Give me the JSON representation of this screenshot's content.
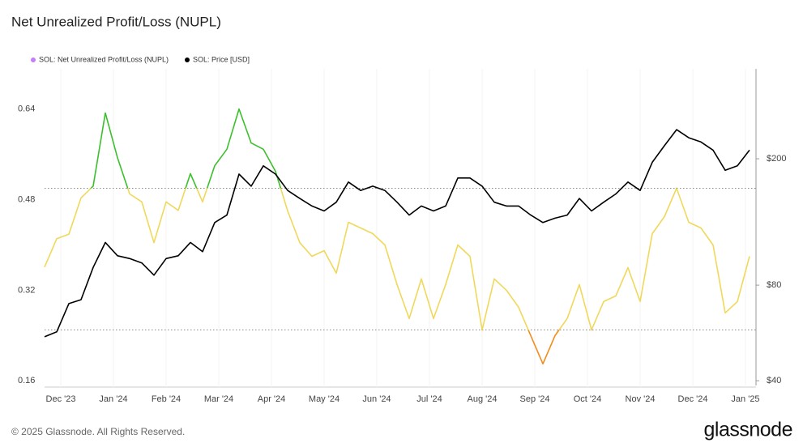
{
  "chart_data": {
    "type": "line",
    "title": "Net Unrealized Profit/Loss (NUPL)",
    "footer": "© 2025 Glassnode. All Rights Reserved.",
    "brand": "glassnode",
    "x_labels": [
      "Dec '23",
      "Jan '24",
      "Feb '24",
      "Mar '24",
      "Apr '24",
      "May '24",
      "Jun '24",
      "Jul '24",
      "Aug '24",
      "Sep '24",
      "Oct '24",
      "Nov '24",
      "Dec '24",
      "Jan '25"
    ],
    "ylim": [
      0.149,
      0.711
    ],
    "yticks": [
      0.16,
      0.32,
      0.48,
      0.64
    ],
    "y2lim": [
      38.2,
      384
    ],
    "y2scale": "log",
    "y2ticks": [
      {
        "value": 40,
        "label": "$40"
      },
      {
        "value": 80,
        "label": "$80"
      },
      {
        "value": 200,
        "label": "$200"
      }
    ],
    "threshold_lines": [
      0.25,
      0.5
    ],
    "zone_colors": [
      "#f28c1c",
      "#f0d85a",
      "#3cbf2c"
    ],
    "series": [
      {
        "name": "SOL: Net Unrealized Profit/Loss (NUPL)",
        "color": "#c77df3",
        "values": [
          0.361,
          0.411,
          0.419,
          0.483,
          0.504,
          0.633,
          0.554,
          0.49,
          0.476,
          0.404,
          0.476,
          0.461,
          0.526,
          0.476,
          0.54,
          0.569,
          0.64,
          0.58,
          0.569,
          0.53,
          0.46,
          0.404,
          0.38,
          0.39,
          0.35,
          0.44,
          0.43,
          0.42,
          0.4,
          0.33,
          0.27,
          0.34,
          0.27,
          0.33,
          0.4,
          0.38,
          0.25,
          0.34,
          0.32,
          0.29,
          0.24,
          0.19,
          0.24,
          0.27,
          0.33,
          0.25,
          0.3,
          0.31,
          0.36,
          0.3,
          0.42,
          0.45,
          0.5,
          0.44,
          0.43,
          0.4,
          0.28,
          0.3,
          0.38
        ]
      },
      {
        "name": "SOL: Price [USD]",
        "color": "#000000",
        "axis": "y2",
        "values": [
          55,
          57,
          70,
          72,
          91,
          109,
          99,
          97,
          94,
          86,
          97,
          99,
          109,
          102,
          126,
          133,
          179,
          164,
          190,
          179,
          159,
          150,
          142,
          137,
          146,
          169,
          159,
          164,
          159,
          146,
          133,
          142,
          137,
          142,
          174,
          174,
          164,
          146,
          142,
          142,
          133,
          126,
          130,
          133,
          150,
          137,
          146,
          155,
          169,
          159,
          195,
          220,
          247,
          233,
          226,
          213,
          184,
          190,
          213
        ]
      }
    ]
  }
}
